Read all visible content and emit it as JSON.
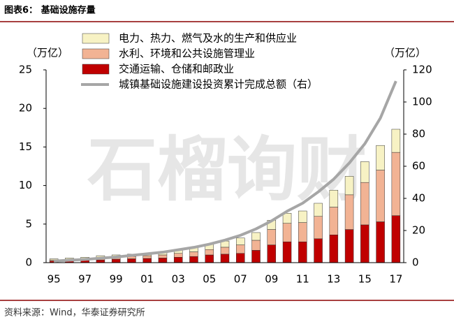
{
  "chart_data": {
    "type": "stacked_bar_line",
    "title": "图表6：  基础设施存量",
    "source": "资料来源：Wind，华泰证券研究所",
    "watermark": "石榴询财",
    "y_label": "（万亿）",
    "y2_label": "（万亿）",
    "categories": [
      "95",
      null,
      "97",
      null,
      "99",
      null,
      "01",
      null,
      "03",
      null,
      "05",
      null,
      "07",
      null,
      "09",
      null,
      "11",
      null,
      "13",
      null,
      "15",
      null,
      "17"
    ],
    "ylim": [
      0,
      25
    ],
    "yticks": [
      0,
      5,
      10,
      15,
      20,
      25
    ],
    "y2lim": [
      0,
      120
    ],
    "y2ticks": [
      0,
      20,
      40,
      60,
      80,
      100,
      120
    ],
    "series": [
      {
        "name": "电力、热力、燃气及水的生产和供应业",
        "color": "#f7f2c4",
        "values": [
          0.15,
          0.2,
          0.2,
          0.3,
          0.25,
          0.3,
          0.3,
          0.4,
          0.5,
          0.6,
          0.7,
          0.8,
          0.9,
          1.0,
          1.2,
          1.3,
          1.5,
          1.7,
          2.2,
          2.4,
          2.7,
          3.2,
          3.0
        ]
      },
      {
        "name": "水利、环境和公共设施管理业",
        "color": "#f2b394",
        "values": [
          0.15,
          0.15,
          0.2,
          0.25,
          0.3,
          0.3,
          0.35,
          0.4,
          0.5,
          0.6,
          0.7,
          0.9,
          1.1,
          1.3,
          2.0,
          2.4,
          2.5,
          2.9,
          3.6,
          4.5,
          5.5,
          6.7,
          8.2
        ]
      },
      {
        "name": "交通运输、仓储和邮政业",
        "color": "#c00000",
        "values": [
          0.2,
          0.25,
          0.3,
          0.35,
          0.45,
          0.5,
          0.55,
          0.6,
          0.7,
          0.8,
          1.0,
          1.1,
          1.2,
          1.6,
          2.3,
          2.7,
          2.7,
          3.1,
          3.6,
          4.3,
          4.9,
          5.3,
          6.1
        ]
      },
      {
        "name": "城镇基础设施建设投资累计完成总额（右）",
        "color": "#a6a6a6",
        "type": "line",
        "axis": "y2",
        "values": [
          1,
          1.5,
          2,
          2.8,
          3.5,
          4.5,
          5.5,
          6.5,
          8,
          9.5,
          11.5,
          14,
          17,
          21,
          26,
          32,
          37,
          44,
          52,
          62,
          74,
          90,
          113
        ]
      }
    ]
  }
}
